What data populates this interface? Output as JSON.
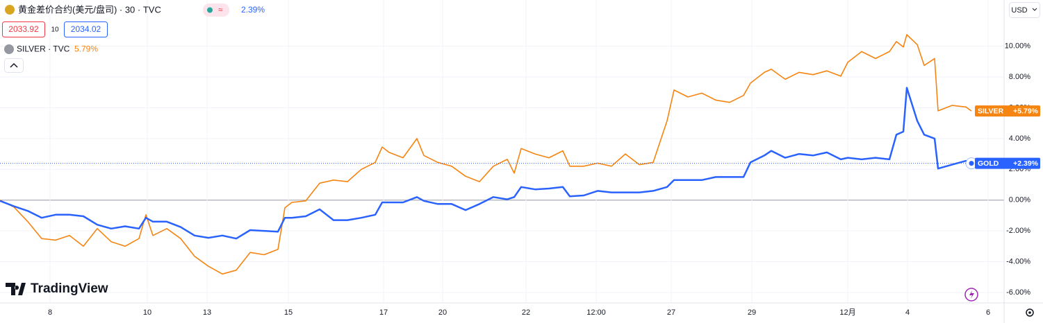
{
  "chart_data": {
    "type": "line",
    "header": {
      "symbol": "黄金差价合约(美元/盘司) · 30 · TVC",
      "spread_icon": "≈",
      "change": "2.39%",
      "bid": "2033.92",
      "spread": "10",
      "ask": "2034.02"
    },
    "compare": {
      "symbol": "SILVER · TVC",
      "change": "5.79%"
    },
    "currency": "USD",
    "watermark": "TradingView",
    "x": [
      0,
      20,
      40,
      60,
      80,
      100,
      120,
      140,
      160,
      180,
      200,
      210,
      220,
      240,
      260,
      280,
      300,
      320,
      340,
      360,
      380,
      400,
      410,
      420,
      440,
      460,
      480,
      500,
      520,
      540,
      550,
      560,
      580,
      600,
      610,
      630,
      650,
      670,
      690,
      710,
      730,
      740,
      750,
      770,
      790,
      810,
      820,
      840,
      860,
      880,
      900,
      920,
      940,
      960,
      970,
      990,
      1010,
      1030,
      1050,
      1070,
      1080,
      1100,
      1110,
      1130,
      1150,
      1170,
      1190,
      1210,
      1220,
      1240,
      1260,
      1280,
      1290,
      1300,
      1305,
      1320,
      1330,
      1345,
      1350,
      1370,
      1390,
      1398
    ],
    "xlim": [
      0,
      1445
    ],
    "xticks": [
      {
        "value": 72,
        "label": "8"
      },
      {
        "value": 212,
        "label": "10"
      },
      {
        "value": 298,
        "label": "13"
      },
      {
        "value": 415,
        "label": "15"
      },
      {
        "value": 552,
        "label": "17"
      },
      {
        "value": 637,
        "label": "20"
      },
      {
        "value": 757,
        "label": "22"
      },
      {
        "value": 858,
        "label": "12:00"
      },
      {
        "value": 966,
        "label": "27"
      },
      {
        "value": 1082,
        "label": "29"
      },
      {
        "value": 1220,
        "label": "12月"
      },
      {
        "value": 1306,
        "label": "4"
      },
      {
        "value": 1422,
        "label": "6"
      }
    ],
    "ylim": [
      -6.7,
      13
    ],
    "yticks": [
      {
        "value": -6,
        "label": "-6.00%"
      },
      {
        "value": -4,
        "label": "-4.00%"
      },
      {
        "value": -2,
        "label": "-2.00%"
      },
      {
        "value": 0,
        "label": "0.00%"
      },
      {
        "value": 2,
        "label": "2.00%"
      },
      {
        "value": 4,
        "label": "4.00%"
      },
      {
        "value": 6,
        "label": "6.00%"
      },
      {
        "value": 8,
        "label": "8.00%"
      },
      {
        "value": 10,
        "label": "10.00%"
      }
    ],
    "grid": true,
    "series": [
      {
        "name": "SILVER",
        "color": "#f68410",
        "last_label": "+5.79%",
        "values": [
          0,
          -0.45,
          -1.4,
          -2.5,
          -2.6,
          -2.3,
          -3.0,
          -1.85,
          -2.7,
          -3.0,
          -2.5,
          -0.95,
          -2.3,
          -1.85,
          -2.5,
          -3.65,
          -4.3,
          -4.8,
          -4.55,
          -3.4,
          -3.55,
          -3.2,
          -0.5,
          -0.15,
          -0.05,
          1.1,
          1.3,
          1.2,
          2.0,
          2.45,
          3.45,
          3.1,
          2.75,
          4.0,
          2.9,
          2.45,
          2.2,
          1.55,
          1.2,
          2.2,
          2.65,
          1.75,
          3.35,
          3.0,
          2.75,
          3.2,
          2.2,
          2.2,
          2.4,
          2.2,
          3.0,
          2.3,
          2.45,
          5.15,
          7.15,
          6.7,
          6.95,
          6.5,
          6.35,
          6.8,
          7.6,
          8.3,
          8.5,
          7.85,
          8.3,
          8.15,
          8.4,
          8.05,
          8.95,
          9.65,
          9.2,
          9.65,
          10.3,
          9.95,
          10.75,
          10.1,
          8.75,
          9.2,
          5.8,
          6.15,
          6.05,
          5.79
        ]
      },
      {
        "name": "GOLD",
        "color": "#2962ff",
        "last_label": "+2.39%",
        "values": [
          -0.05,
          -0.4,
          -0.7,
          -1.15,
          -0.95,
          -0.95,
          -1.05,
          -1.6,
          -1.85,
          -1.7,
          -1.85,
          -1.15,
          -1.4,
          -1.4,
          -1.75,
          -2.3,
          -2.45,
          -2.3,
          -2.5,
          -1.95,
          -2.0,
          -2.05,
          -1.15,
          -1.15,
          -1.05,
          -0.6,
          -1.3,
          -1.3,
          -1.15,
          -0.95,
          -0.15,
          -0.15,
          -0.15,
          0.2,
          -0.05,
          -0.25,
          -0.25,
          -0.65,
          -0.25,
          0.2,
          0.05,
          0.2,
          0.85,
          0.7,
          0.75,
          0.85,
          0.25,
          0.3,
          0.6,
          0.5,
          0.5,
          0.5,
          0.6,
          0.85,
          1.3,
          1.3,
          1.3,
          1.5,
          1.5,
          1.5,
          2.45,
          2.9,
          3.2,
          2.75,
          3.0,
          2.9,
          3.1,
          2.65,
          2.75,
          2.65,
          2.75,
          2.65,
          4.25,
          4.45,
          7.3,
          5.15,
          4.25,
          4.0,
          2.05,
          2.3,
          2.55,
          2.39
        ]
      }
    ]
  }
}
